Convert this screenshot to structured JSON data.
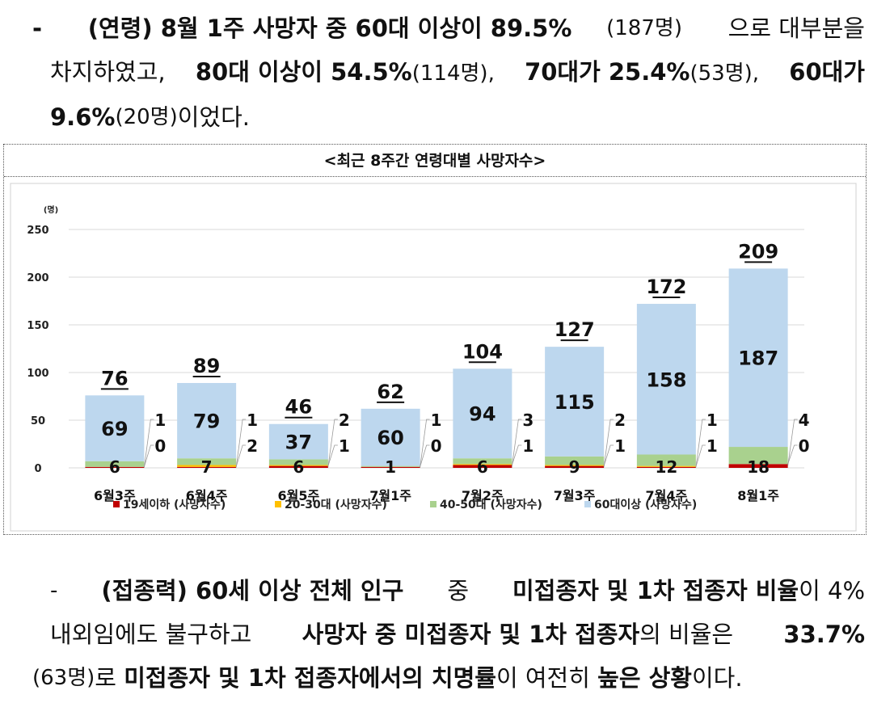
{
  "paragraph1": {
    "dash": "-",
    "seg1": "(연령) 8월 1주 사망자 중 60대 이상이 89.5%",
    "seg1b": "(187명)",
    "seg1c": "으로 대부분을",
    "seg2a": "차지하였고,",
    "seg2b": "80대 이상이 54.5%",
    "seg2c": "(114명),",
    "seg2d": "70대가 25.4%",
    "seg2e": "(53명),",
    "seg2f": "60대가",
    "seg3a": "9.6%",
    "seg3b": "(20명)",
    "seg3c": "이었다."
  },
  "paragraph2": {
    "dash": "-",
    "l1a": "(접종력) 60세 이상 전체 인구",
    "l1b": "중",
    "l1c": "미접종자 및 1차 접종자 비율",
    "l1d": "이 4%",
    "l2a": "내외임에도 불구하고",
    "l2b": "사망자 중 미접종자 및 1차 접종자",
    "l2c": "의 비율은",
    "l2d": "33.7%",
    "l3a": "(63명)",
    "l3b": "로",
    "l3c": "미접종자 및 1차 접종자에서의 치명률",
    "l3d": "이 여전히",
    "l3e": "높은 상황",
    "l3f": "이다."
  },
  "chart_data": {
    "type": "bar",
    "stacked": true,
    "title": "<최근 8주간 연령대별 사망자수>",
    "unit_label": "(명)",
    "ylim": [
      0,
      250
    ],
    "yticks": [
      0,
      50,
      100,
      150,
      200,
      250
    ],
    "grid": true,
    "legend_position": "bottom",
    "categories": [
      "6월3주",
      "6월4주",
      "6월5주",
      "7월1주",
      "7월2주",
      "7월3주",
      "7월4주",
      "8월1주"
    ],
    "series": [
      {
        "name": "19세이하 (사망자수)",
        "color": "#c00000",
        "values": [
          1,
          1,
          2,
          1,
          3,
          2,
          1,
          4
        ]
      },
      {
        "name": "20-30대 (사망자수)",
        "color": "#ffc000",
        "values": [
          0,
          2,
          1,
          0,
          1,
          1,
          1,
          0
        ]
      },
      {
        "name": "40-50대 (사망자수)",
        "color": "#a9d18e",
        "values": [
          6,
          7,
          6,
          1,
          6,
          9,
          12,
          18
        ]
      },
      {
        "name": "60대이상 (사망자수)",
        "color": "#bdd7ee",
        "values": [
          69,
          79,
          37,
          60,
          94,
          115,
          158,
          187
        ]
      }
    ],
    "totals": [
      76,
      89,
      46,
      62,
      104,
      127,
      172,
      209
    ]
  }
}
